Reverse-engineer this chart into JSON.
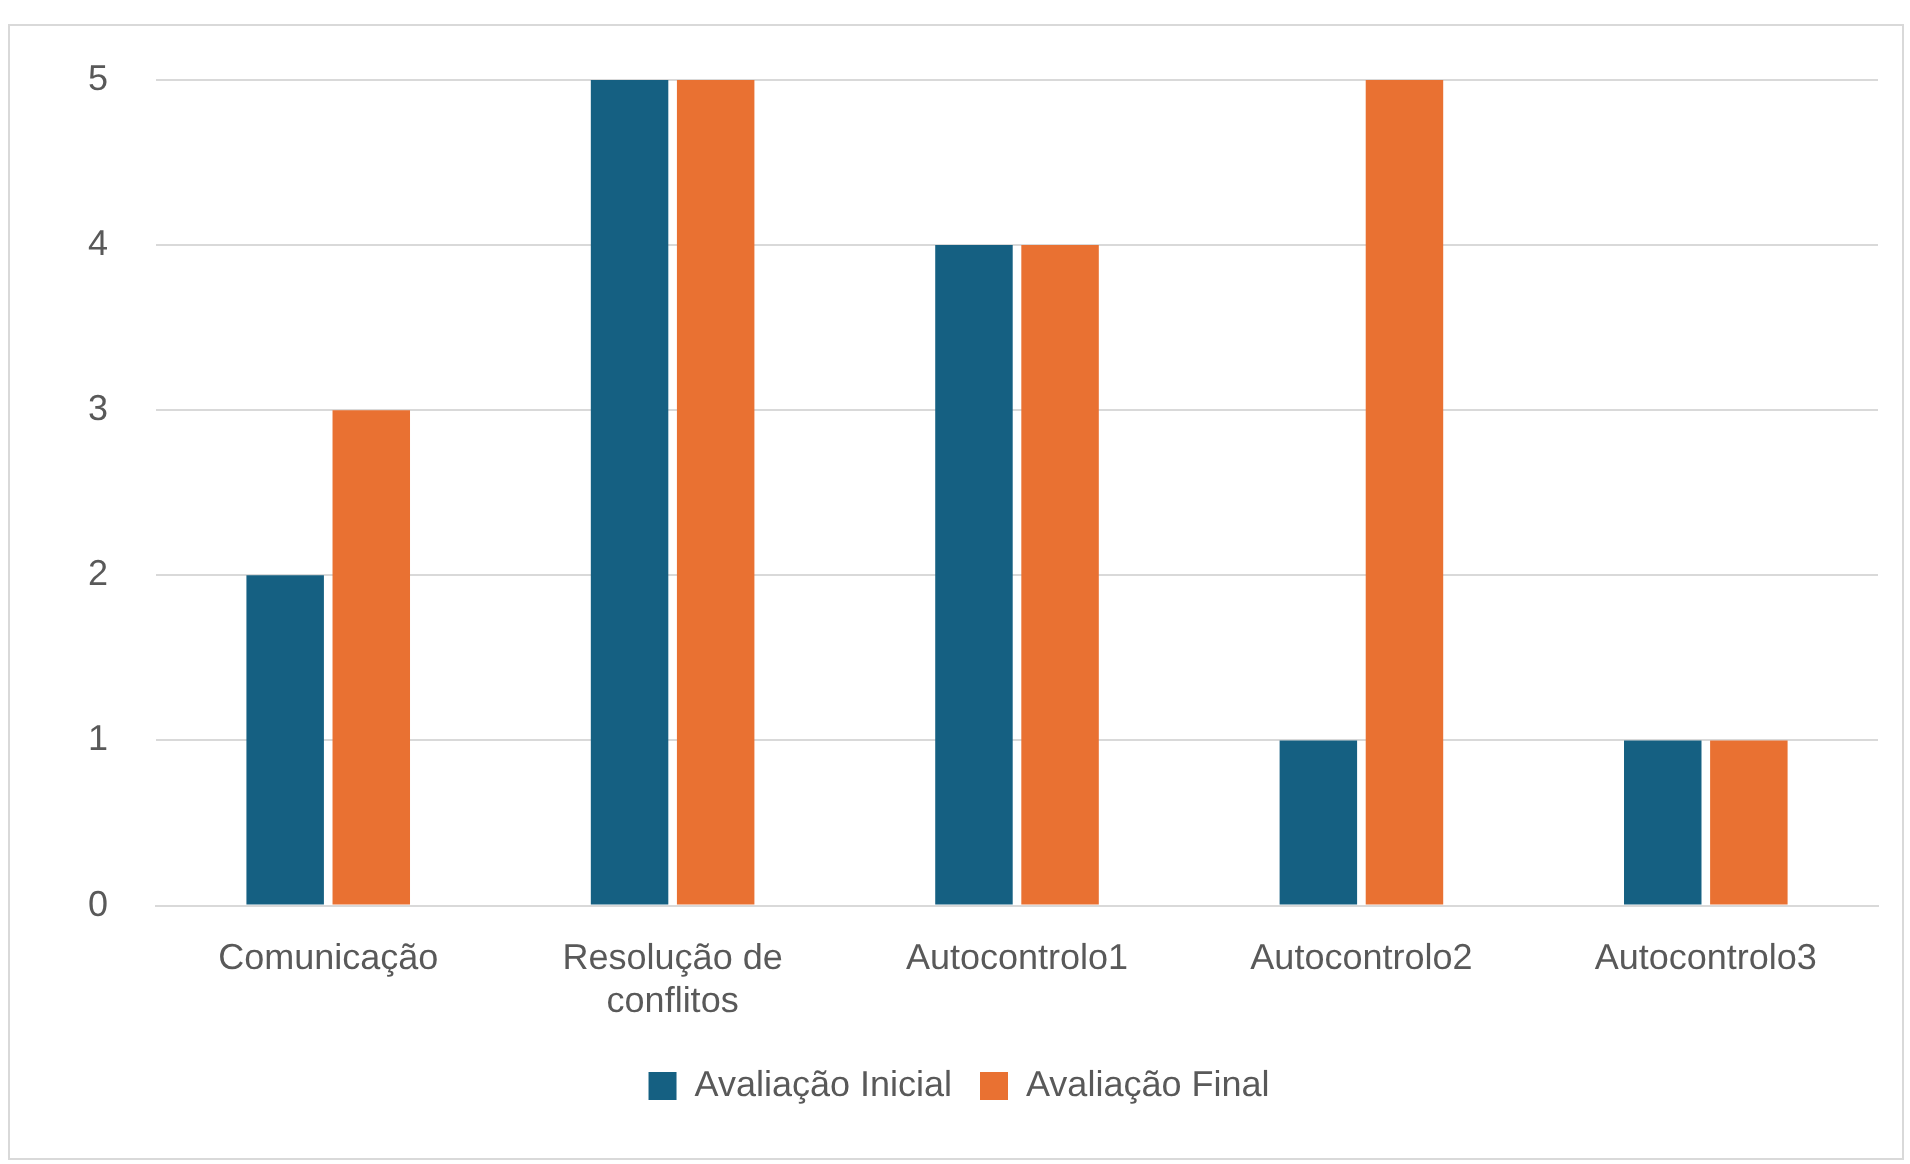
{
  "chart_data": {
    "type": "bar",
    "categories": [
      "Comunicação",
      "Resolução de conflitos",
      "Autocontrolo1",
      "Autocontrolo2",
      "Autocontrolo3"
    ],
    "series": [
      {
        "name": "Avaliação Inicial",
        "color": "#156082",
        "values": [
          2,
          5,
          4,
          1,
          1
        ]
      },
      {
        "name": "Avaliação Final",
        "color": "#e97132",
        "values": [
          3,
          5,
          4,
          5,
          1
        ]
      }
    ],
    "ylim": [
      0,
      5
    ],
    "yticks": [
      0,
      1,
      2,
      3,
      4,
      5
    ],
    "grid": "y",
    "legend": "bottom"
  }
}
